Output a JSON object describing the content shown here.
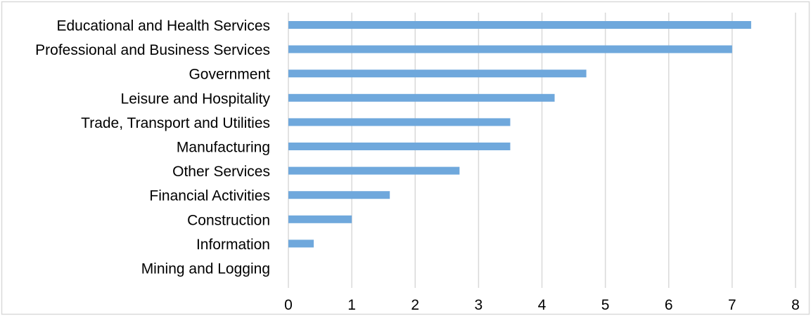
{
  "chart_data": {
    "type": "bar",
    "orientation": "horizontal",
    "categories": [
      "Educational and Health Services",
      "Professional and Business Services",
      "Government",
      "Leisure and Hospitality",
      "Trade, Transport and Utilities",
      "Manufacturing",
      "Other Services",
      "Financial Activities",
      "Construction",
      "Information",
      "Mining and Logging"
    ],
    "values": [
      7.3,
      7.0,
      4.7,
      4.2,
      3.5,
      3.5,
      2.7,
      1.6,
      1.0,
      0.4,
      0.0
    ],
    "xlim": [
      0,
      8
    ],
    "xticks": [
      "0",
      "1",
      "2",
      "3",
      "4",
      "5",
      "6",
      "7",
      "8"
    ],
    "grid": "vertical",
    "legend": "none",
    "bar_color": "#6fa8dc",
    "title": "",
    "xlabel": "",
    "ylabel": ""
  }
}
